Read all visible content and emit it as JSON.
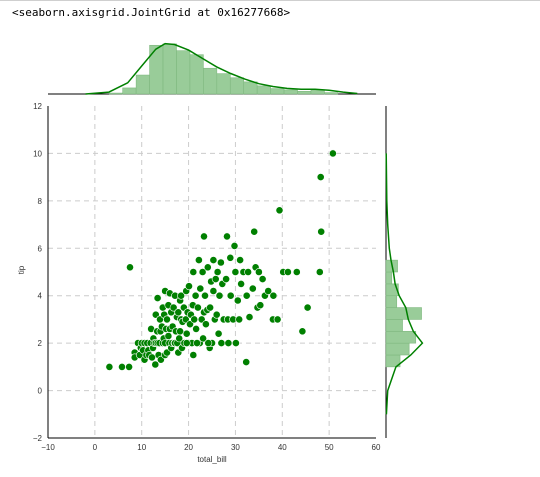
{
  "output_repr": "<seaborn.axisgrid.JointGrid at 0x16277668>",
  "colors": {
    "marker": "#008000",
    "marker_edge": "#ffffff",
    "hist_fill": "#99cc99",
    "hist_edge": "#7fb87f",
    "kde": "#008000",
    "grid": "#cccccc",
    "axis": "#000000"
  },
  "chart_data": {
    "type": "scatter",
    "kind": "jointplot",
    "xlabel": "total_bill",
    "ylabel": "tip",
    "xlim": [
      -10,
      60
    ],
    "ylim": [
      -2,
      12
    ],
    "x_ticks": [
      -10,
      0,
      10,
      20,
      30,
      40,
      50,
      60
    ],
    "y_ticks": [
      -2,
      0,
      2,
      4,
      6,
      8,
      10,
      12
    ],
    "grid": true,
    "points": [
      [
        3.1,
        1.0
      ],
      [
        5.8,
        1.0
      ],
      [
        7.3,
        1.0
      ],
      [
        7.5,
        5.2
      ],
      [
        8.5,
        1.6
      ],
      [
        8.5,
        1.4
      ],
      [
        9.2,
        2.0
      ],
      [
        9.6,
        1.5
      ],
      [
        9.8,
        1.8
      ],
      [
        10.0,
        2.0
      ],
      [
        10.3,
        1.7
      ],
      [
        10.6,
        2.0
      ],
      [
        10.6,
        1.3
      ],
      [
        11.0,
        1.5
      ],
      [
        11.2,
        2.0
      ],
      [
        11.4,
        1.7
      ],
      [
        11.6,
        1.5
      ],
      [
        11.9,
        2.0
      ],
      [
        12.0,
        2.6
      ],
      [
        12.2,
        1.4
      ],
      [
        12.4,
        1.8
      ],
      [
        12.5,
        2.2
      ],
      [
        12.7,
        2.0
      ],
      [
        12.9,
        1.1
      ],
      [
        13.0,
        2.0
      ],
      [
        13.0,
        3.2
      ],
      [
        13.3,
        2.5
      ],
      [
        13.4,
        2.0
      ],
      [
        13.4,
        3.9
      ],
      [
        13.6,
        1.5
      ],
      [
        13.8,
        2.0
      ],
      [
        13.9,
        3.0
      ],
      [
        14.0,
        2.5
      ],
      [
        14.1,
        1.3
      ],
      [
        14.3,
        2.7
      ],
      [
        14.5,
        2.0
      ],
      [
        14.5,
        3.5
      ],
      [
        14.7,
        2.2
      ],
      [
        14.8,
        3.2
      ],
      [
        15.0,
        2.0
      ],
      [
        15.0,
        1.5
      ],
      [
        15.0,
        4.2
      ],
      [
        15.2,
        2.6
      ],
      [
        15.4,
        1.6
      ],
      [
        15.4,
        3.0
      ],
      [
        15.7,
        2.3
      ],
      [
        15.7,
        3.6
      ],
      [
        15.9,
        2.0
      ],
      [
        16.0,
        2.6
      ],
      [
        16.0,
        4.1
      ],
      [
        16.3,
        1.8
      ],
      [
        16.3,
        3.3
      ],
      [
        16.5,
        2.0
      ],
      [
        16.6,
        2.7
      ],
      [
        16.8,
        3.5
      ],
      [
        17.0,
        2.0
      ],
      [
        17.1,
        2.0
      ],
      [
        17.1,
        4.0
      ],
      [
        17.3,
        2.5
      ],
      [
        17.5,
        3.1
      ],
      [
        17.6,
        2.0
      ],
      [
        17.8,
        3.3
      ],
      [
        17.8,
        1.6
      ],
      [
        18.0,
        2.2
      ],
      [
        18.2,
        3.8
      ],
      [
        18.2,
        2.5
      ],
      [
        18.4,
        4.0
      ],
      [
        18.4,
        3.0
      ],
      [
        18.6,
        1.8
      ],
      [
        18.7,
        2.9
      ],
      [
        19.0,
        3.5
      ],
      [
        19.1,
        2.0
      ],
      [
        19.4,
        3.0
      ],
      [
        19.5,
        4.2
      ],
      [
        19.6,
        2.4
      ],
      [
        19.8,
        3.3
      ],
      [
        20.0,
        2.0
      ],
      [
        20.1,
        4.4
      ],
      [
        20.3,
        2.8
      ],
      [
        20.5,
        3.2
      ],
      [
        20.7,
        2.0
      ],
      [
        20.9,
        3.6
      ],
      [
        21.0,
        1.5
      ],
      [
        21.0,
        5.0
      ],
      [
        21.2,
        3.0
      ],
      [
        21.5,
        4.0
      ],
      [
        21.6,
        2.6
      ],
      [
        22.0,
        3.5
      ],
      [
        22.2,
        5.5
      ],
      [
        22.4,
        2.0
      ],
      [
        22.5,
        4.3
      ],
      [
        22.8,
        3.0
      ],
      [
        23.0,
        5.0
      ],
      [
        23.1,
        2.2
      ],
      [
        23.3,
        3.3
      ],
      [
        23.3,
        6.5
      ],
      [
        23.5,
        4.0
      ],
      [
        23.7,
        2.8
      ],
      [
        24.0,
        3.4
      ],
      [
        24.1,
        5.2
      ],
      [
        24.5,
        1.8
      ],
      [
        24.6,
        3.5
      ],
      [
        24.8,
        4.6
      ],
      [
        25.0,
        2.0
      ],
      [
        25.3,
        4.2
      ],
      [
        25.3,
        5.5
      ],
      [
        25.6,
        3.0
      ],
      [
        25.8,
        4.7
      ],
      [
        26.0,
        3.2
      ],
      [
        26.2,
        5.0
      ],
      [
        26.4,
        2.4
      ],
      [
        26.6,
        4.0
      ],
      [
        26.9,
        5.4
      ],
      [
        27.0,
        2.0
      ],
      [
        27.2,
        4.5
      ],
      [
        27.5,
        3.0
      ],
      [
        28.0,
        4.7
      ],
      [
        28.2,
        6.5
      ],
      [
        28.4,
        3.0
      ],
      [
        28.5,
        2.0
      ],
      [
        28.9,
        5.6
      ],
      [
        29.0,
        4.0
      ],
      [
        29.5,
        3.0
      ],
      [
        29.8,
        6.1
      ],
      [
        30.0,
        5.0
      ],
      [
        30.1,
        2.0
      ],
      [
        30.5,
        3.8
      ],
      [
        30.8,
        3.0
      ],
      [
        31.0,
        5.5
      ],
      [
        31.2,
        4.5
      ],
      [
        31.7,
        5.0
      ],
      [
        32.3,
        1.2
      ],
      [
        32.4,
        4.0
      ],
      [
        32.7,
        5.0
      ],
      [
        33.0,
        3.1
      ],
      [
        33.7,
        4.3
      ],
      [
        34.0,
        6.7
      ],
      [
        34.3,
        5.2
      ],
      [
        34.7,
        3.5
      ],
      [
        35.0,
        5.0
      ],
      [
        35.3,
        3.6
      ],
      [
        35.8,
        4.7
      ],
      [
        36.3,
        4.0
      ],
      [
        37.0,
        4.2
      ],
      [
        38.0,
        3.0
      ],
      [
        38.1,
        4.0
      ],
      [
        39.0,
        3.0
      ],
      [
        39.4,
        7.6
      ],
      [
        40.2,
        5.0
      ],
      [
        41.2,
        5.0
      ],
      [
        43.1,
        5.0
      ],
      [
        44.3,
        2.5
      ],
      [
        45.4,
        3.5
      ],
      [
        48.0,
        5.0
      ],
      [
        48.2,
        9.0
      ],
      [
        48.3,
        6.7
      ],
      [
        50.8,
        10.0
      ],
      [
        24.2,
        2.0
      ],
      [
        21.8,
        2.0
      ],
      [
        19.6,
        2.0
      ]
    ],
    "top_hist": {
      "bin_edges": [
        3.07,
        5.94,
        8.81,
        11.68,
        14.55,
        17.42,
        20.29,
        23.16,
        26.03,
        28.9,
        31.77,
        34.64,
        37.51,
        40.38,
        43.25,
        46.12,
        48.99,
        51.86
      ],
      "density": [
        0.001,
        0.0065,
        0.0203,
        0.0522,
        0.0537,
        0.0464,
        0.0421,
        0.0276,
        0.0218,
        0.0174,
        0.013,
        0.0087,
        0.0058,
        0.0044,
        0.0029,
        0.0044,
        0.0015
      ]
    },
    "right_hist": {
      "bin_edges": [
        1.0,
        1.5,
        2.0,
        2.5,
        3.0,
        3.5,
        4.0,
        4.5,
        5.0,
        5.5
      ],
      "density": [
        0.17,
        0.28,
        0.36,
        0.2,
        0.43,
        0.13,
        0.15,
        0.07,
        0.14
      ]
    }
  }
}
